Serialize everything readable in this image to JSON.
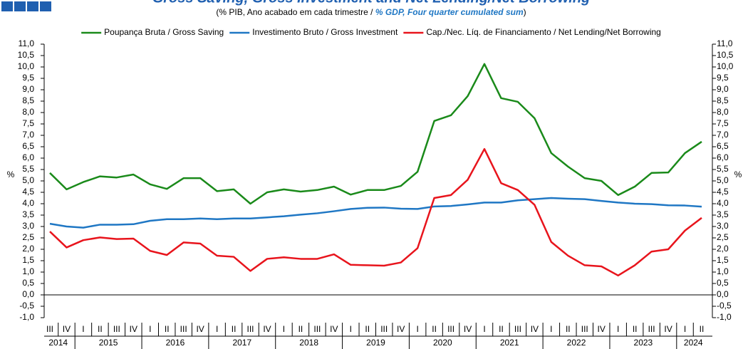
{
  "chart_data": {
    "type": "line",
    "title": "Gross Saving, Gross Investment and Net Lending/Net Borrowing",
    "subtitle": [
      "(% PIB, Ano acabado em cada trimestre / ",
      "% GDP, Four quarter cumulated sum",
      ")"
    ],
    "ylabel": "%",
    "y2label": "%",
    "categories": [
      "III",
      "IV",
      "I",
      "II",
      "III",
      "IV",
      "I",
      "II",
      "III",
      "IV",
      "I",
      "II",
      "III",
      "IV",
      "I",
      "II",
      "III",
      "IV",
      "I",
      "II",
      "III",
      "IV",
      "I",
      "II",
      "III",
      "IV",
      "I",
      "II",
      "III",
      "IV",
      "I",
      "II",
      "III",
      "IV",
      "I",
      "II",
      "III",
      "IV",
      "I",
      "II"
    ],
    "years": [
      "2014",
      "2015",
      "2016",
      "2017",
      "2018",
      "2019",
      "2020",
      "2021",
      "2022",
      "2023",
      "2024"
    ],
    "ylim": [
      -1,
      11
    ],
    "yticks": [
      {
        "value": -1,
        "label": "-1,0"
      },
      {
        "value": -0.5,
        "label": "-0,5"
      },
      {
        "value": 0,
        "label": "0,0"
      },
      {
        "value": 0.5,
        "label": "0,5"
      },
      {
        "value": 1,
        "label": "1,0"
      },
      {
        "value": 1.5,
        "label": "1,5"
      },
      {
        "value": 2,
        "label": "2,0"
      },
      {
        "value": 2.5,
        "label": "2,5"
      },
      {
        "value": 3,
        "label": "3,0"
      },
      {
        "value": 3.5,
        "label": "3,5"
      },
      {
        "value": 4,
        "label": "4,0"
      },
      {
        "value": 4.5,
        "label": "4,5"
      },
      {
        "value": 5,
        "label": "5,0"
      },
      {
        "value": 5.5,
        "label": "5,5"
      },
      {
        "value": 6,
        "label": "6,0"
      },
      {
        "value": 6.5,
        "label": "6,5"
      },
      {
        "value": 7,
        "label": "7,0"
      },
      {
        "value": 7.5,
        "label": "7,5"
      },
      {
        "value": 8,
        "label": "8,0"
      },
      {
        "value": 8.5,
        "label": "8,5"
      },
      {
        "value": 9,
        "label": "9,0"
      },
      {
        "value": 9.5,
        "label": "9,5"
      },
      {
        "value": 10,
        "label": "10,0"
      },
      {
        "value": 10.5,
        "label": "10,5"
      },
      {
        "value": 11,
        "label": "11,0"
      }
    ],
    "grid": false,
    "legend": "top",
    "series": [
      {
        "name": "Poupança Bruta / Gross Saving",
        "color": "#1a8a1a",
        "values": [
          5.35,
          4.63,
          4.95,
          5.2,
          5.15,
          5.28,
          4.85,
          4.65,
          5.12,
          5.12,
          4.55,
          4.63,
          4.0,
          4.5,
          4.63,
          4.53,
          4.6,
          4.75,
          4.4,
          4.6,
          4.6,
          4.78,
          5.4,
          7.63,
          7.88,
          8.72,
          10.13,
          8.63,
          8.47,
          7.75,
          6.22,
          5.63,
          5.12,
          5.0,
          4.38,
          4.75,
          5.35,
          5.37,
          6.22,
          6.72
        ]
      },
      {
        "name": "Investimento Bruto / Gross Investment",
        "color": "#1f77c4",
        "values": [
          3.12,
          3.0,
          2.95,
          3.08,
          3.08,
          3.1,
          3.25,
          3.32,
          3.32,
          3.35,
          3.32,
          3.35,
          3.35,
          3.4,
          3.45,
          3.52,
          3.58,
          3.67,
          3.77,
          3.82,
          3.83,
          3.78,
          3.77,
          3.88,
          3.9,
          3.97,
          4.05,
          4.05,
          4.15,
          4.2,
          4.25,
          4.22,
          4.2,
          4.12,
          4.05,
          4.0,
          3.98,
          3.93,
          3.92,
          3.87
        ]
      },
      {
        "name": "Cap./Nec. Líq. de Financiamento / Net Lending/Net Borrowing",
        "color": "#e8141c",
        "values": [
          2.78,
          2.08,
          2.4,
          2.52,
          2.45,
          2.47,
          1.93,
          1.75,
          2.3,
          2.25,
          1.72,
          1.67,
          1.05,
          1.58,
          1.65,
          1.58,
          1.58,
          1.78,
          1.32,
          1.3,
          1.28,
          1.42,
          2.05,
          4.25,
          4.38,
          5.05,
          6.4,
          4.9,
          4.6,
          3.95,
          2.32,
          1.72,
          1.3,
          1.25,
          0.85,
          1.3,
          1.9,
          2.0,
          2.82,
          3.38
        ]
      }
    ]
  }
}
